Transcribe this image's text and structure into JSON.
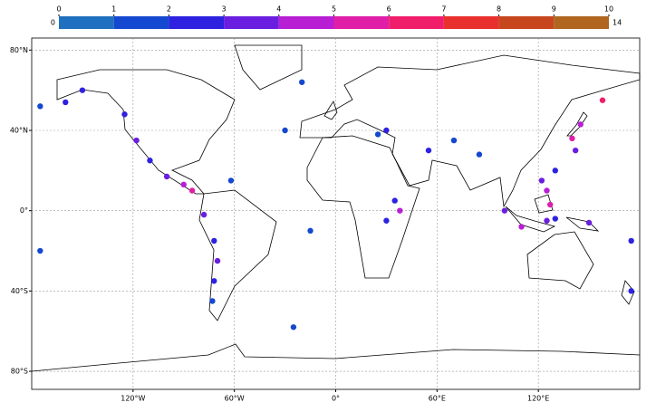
{
  "chart_data": {
    "type": "map",
    "colorbar": {
      "ticks": [
        0,
        1,
        2,
        3,
        4,
        5,
        6,
        7,
        8,
        9,
        10
      ],
      "min_label": 0,
      "max_label": 14,
      "colors": [
        "#1f70c0",
        "#1548d0",
        "#2e22e0",
        "#6a1ee0",
        "#b81ed4",
        "#e01ea8",
        "#f01e6a",
        "#e8302e",
        "#c8461e",
        "#b0661e"
      ]
    },
    "xlim": [
      -180,
      180
    ],
    "ylim": [
      -89,
      86
    ],
    "xticks": [
      {
        "value": -120,
        "label": "120°W"
      },
      {
        "value": -60,
        "label": "60°W"
      },
      {
        "value": 0,
        "label": "0°"
      },
      {
        "value": 60,
        "label": "60°E"
      },
      {
        "value": 120,
        "label": "120°E"
      }
    ],
    "yticks": [
      {
        "value": 80,
        "label": "80°N"
      },
      {
        "value": 40,
        "label": "40°N"
      },
      {
        "value": 0,
        "label": "0°"
      },
      {
        "value": -40,
        "label": "40°S"
      },
      {
        "value": -80,
        "label": "80°S"
      }
    ],
    "grid": true,
    "points": {
      "lon": [
        -175,
        -160,
        -150,
        -125,
        -118,
        -110,
        -100,
        -90,
        -85,
        -78,
        -72,
        -70,
        -72,
        -73,
        -62,
        -30,
        -15,
        25,
        30,
        35,
        38,
        30,
        55,
        70,
        85,
        140,
        145,
        158,
        142,
        125,
        122,
        100,
        110,
        125,
        130,
        150,
        -175,
        175,
        175,
        -25,
        -20,
        130,
        127
      ],
      "lat": [
        52,
        54,
        60,
        48,
        35,
        25,
        17,
        13,
        10,
        -2,
        -15,
        -25,
        -35,
        -45,
        15,
        40,
        -10,
        38,
        40,
        5,
        0,
        -5,
        30,
        35,
        28,
        36,
        43,
        55,
        30,
        10,
        15,
        0,
        -8,
        -5,
        -4,
        -6,
        -20,
        -15,
        -40,
        -58,
        64,
        20,
        3
      ],
      "values": [
        1,
        2,
        2,
        2,
        3,
        2,
        3,
        4,
        5,
        3,
        2,
        3,
        2,
        1,
        1,
        1,
        1,
        1,
        2,
        2,
        4,
        2,
        2,
        1,
        1,
        5,
        4,
        6,
        3,
        4,
        3,
        3,
        4,
        3,
        2,
        3,
        1,
        2,
        2,
        1,
        1,
        2,
        5
      ]
    }
  }
}
